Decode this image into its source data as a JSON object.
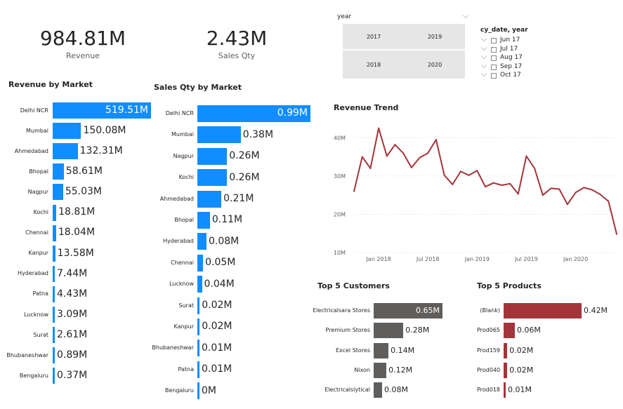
{
  "kpis": [
    {
      "value": "984.81M",
      "label": "Revenue"
    },
    {
      "value": "2.43M",
      "label": "Sales Qty"
    }
  ],
  "slicer_year": {
    "title": "year",
    "options": [
      "2017",
      "2019",
      "2018",
      "2020"
    ]
  },
  "slicer_date": {
    "title": "cy_date, year",
    "options": [
      "Jun 17",
      "Jul 17",
      "Aug 17",
      "Sep 17",
      "Oct 17"
    ]
  },
  "colors": {
    "blue": "#118dff",
    "gray": "#605e5c",
    "red": "#a4343a",
    "slicer_bg": "#e6e6e6"
  },
  "chart_data": [
    {
      "type": "bar",
      "orientation": "horizontal",
      "title": "Revenue by Market",
      "categories": [
        "Delhi NCR",
        "Mumbai",
        "Ahmedabad",
        "Bhopal",
        "Nagpur",
        "Kochi",
        "Chennai",
        "Kanpur",
        "Hyderabad",
        "Patna",
        "Lucknow",
        "Surat",
        "Bhubaneshwar",
        "Bengaluru"
      ],
      "values": [
        519.51,
        150.08,
        132.31,
        58.61,
        55.03,
        18.81,
        18.04,
        13.58,
        7.44,
        4.43,
        3.09,
        2.61,
        0.89,
        0.37
      ],
      "labels": [
        "519.51M",
        "150.08M",
        "132.31M",
        "58.61M",
        "55.03M",
        "18.81M",
        "18.04M",
        "13.58M",
        "7.44M",
        "4.43M",
        "3.09M",
        "2.61M",
        "0.89M",
        "0.37M"
      ],
      "color": "#118dff"
    },
    {
      "type": "bar",
      "orientation": "horizontal",
      "title": "Sales Qty by Market",
      "categories": [
        "Delhi NCR",
        "Mumbai",
        "Nagpur",
        "Kochi",
        "Ahmedabad",
        "Bhopal",
        "Hyderabad",
        "Chennai",
        "Lucknow",
        "Surat",
        "Kanpur",
        "Bhubaneshwar",
        "Patna",
        "Bengaluru"
      ],
      "values": [
        0.99,
        0.38,
        0.26,
        0.26,
        0.21,
        0.11,
        0.08,
        0.05,
        0.04,
        0.02,
        0.02,
        0.01,
        0.01,
        0
      ],
      "labels": [
        "0.99M",
        "0.38M",
        "0.26M",
        "0.26M",
        "0.21M",
        "0.11M",
        "0.08M",
        "0.05M",
        "0.04M",
        "0.02M",
        "0.02M",
        "0.01M",
        "0.01M",
        "0M"
      ],
      "color": "#118dff"
    },
    {
      "type": "line",
      "title": "Revenue Trend",
      "x": [
        "2017-10",
        "2017-11",
        "2017-12",
        "2018-01",
        "2018-02",
        "2018-03",
        "2018-04",
        "2018-05",
        "2018-06",
        "2018-07",
        "2018-08",
        "2018-09",
        "2018-10",
        "2018-11",
        "2018-12",
        "2019-01",
        "2019-02",
        "2019-03",
        "2019-04",
        "2019-05",
        "2019-06",
        "2019-07",
        "2019-08",
        "2019-09",
        "2019-10",
        "2019-11",
        "2019-12",
        "2020-01",
        "2020-02",
        "2020-03",
        "2020-04",
        "2020-05",
        "2020-06"
      ],
      "y": [
        26,
        35,
        32,
        42.5,
        35.2,
        38.2,
        36,
        32.2,
        34.8,
        36,
        39.5,
        30.2,
        27.8,
        31.2,
        30.2,
        31.4,
        27.2,
        28.2,
        27.6,
        28,
        25.3,
        35.2,
        32,
        25,
        26.8,
        26.6,
        22.6,
        25.7,
        27,
        26.4,
        25.2,
        23.4,
        14.8
      ],
      "x_ticks": [
        "Jan 2018",
        "Jul 2018",
        "Jan 2019",
        "Jul 2019",
        "Jan 2020"
      ],
      "y_ticks": [
        "10M",
        "20M",
        "30M",
        "40M"
      ],
      "ylim": [
        10,
        43
      ],
      "grid": true,
      "color": "#a4343a"
    },
    {
      "type": "bar",
      "orientation": "horizontal",
      "title": "Top 5 Customers",
      "categories": [
        "Electricalsara Stores",
        "Premium Stores",
        "Excel Stores",
        "Nixon",
        "Electricalslytical"
      ],
      "values": [
        0.65,
        0.28,
        0.14,
        0.12,
        0.08
      ],
      "labels": [
        "0.65M",
        "0.28M",
        "0.14M",
        "0.12M",
        "0.08M"
      ],
      "color": "#605e5c"
    },
    {
      "type": "bar",
      "orientation": "horizontal",
      "title": "Top 5 Products",
      "categories": [
        "(Blank)",
        "Prod065",
        "Prod159",
        "Prod040",
        "Prod018"
      ],
      "values": [
        0.42,
        0.06,
        0.02,
        0.02,
        0.01
      ],
      "labels": [
        "0.42M",
        "0.06M",
        "0.02M",
        "0.02M",
        "0.01M"
      ],
      "color": "#a4343a"
    }
  ]
}
